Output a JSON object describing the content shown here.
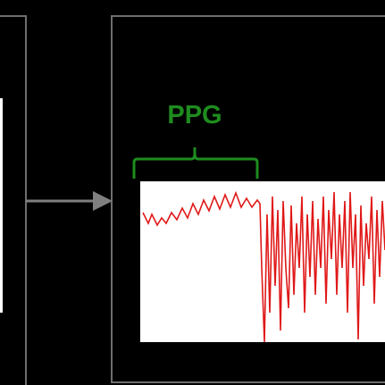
{
  "label": "PPG"
}
